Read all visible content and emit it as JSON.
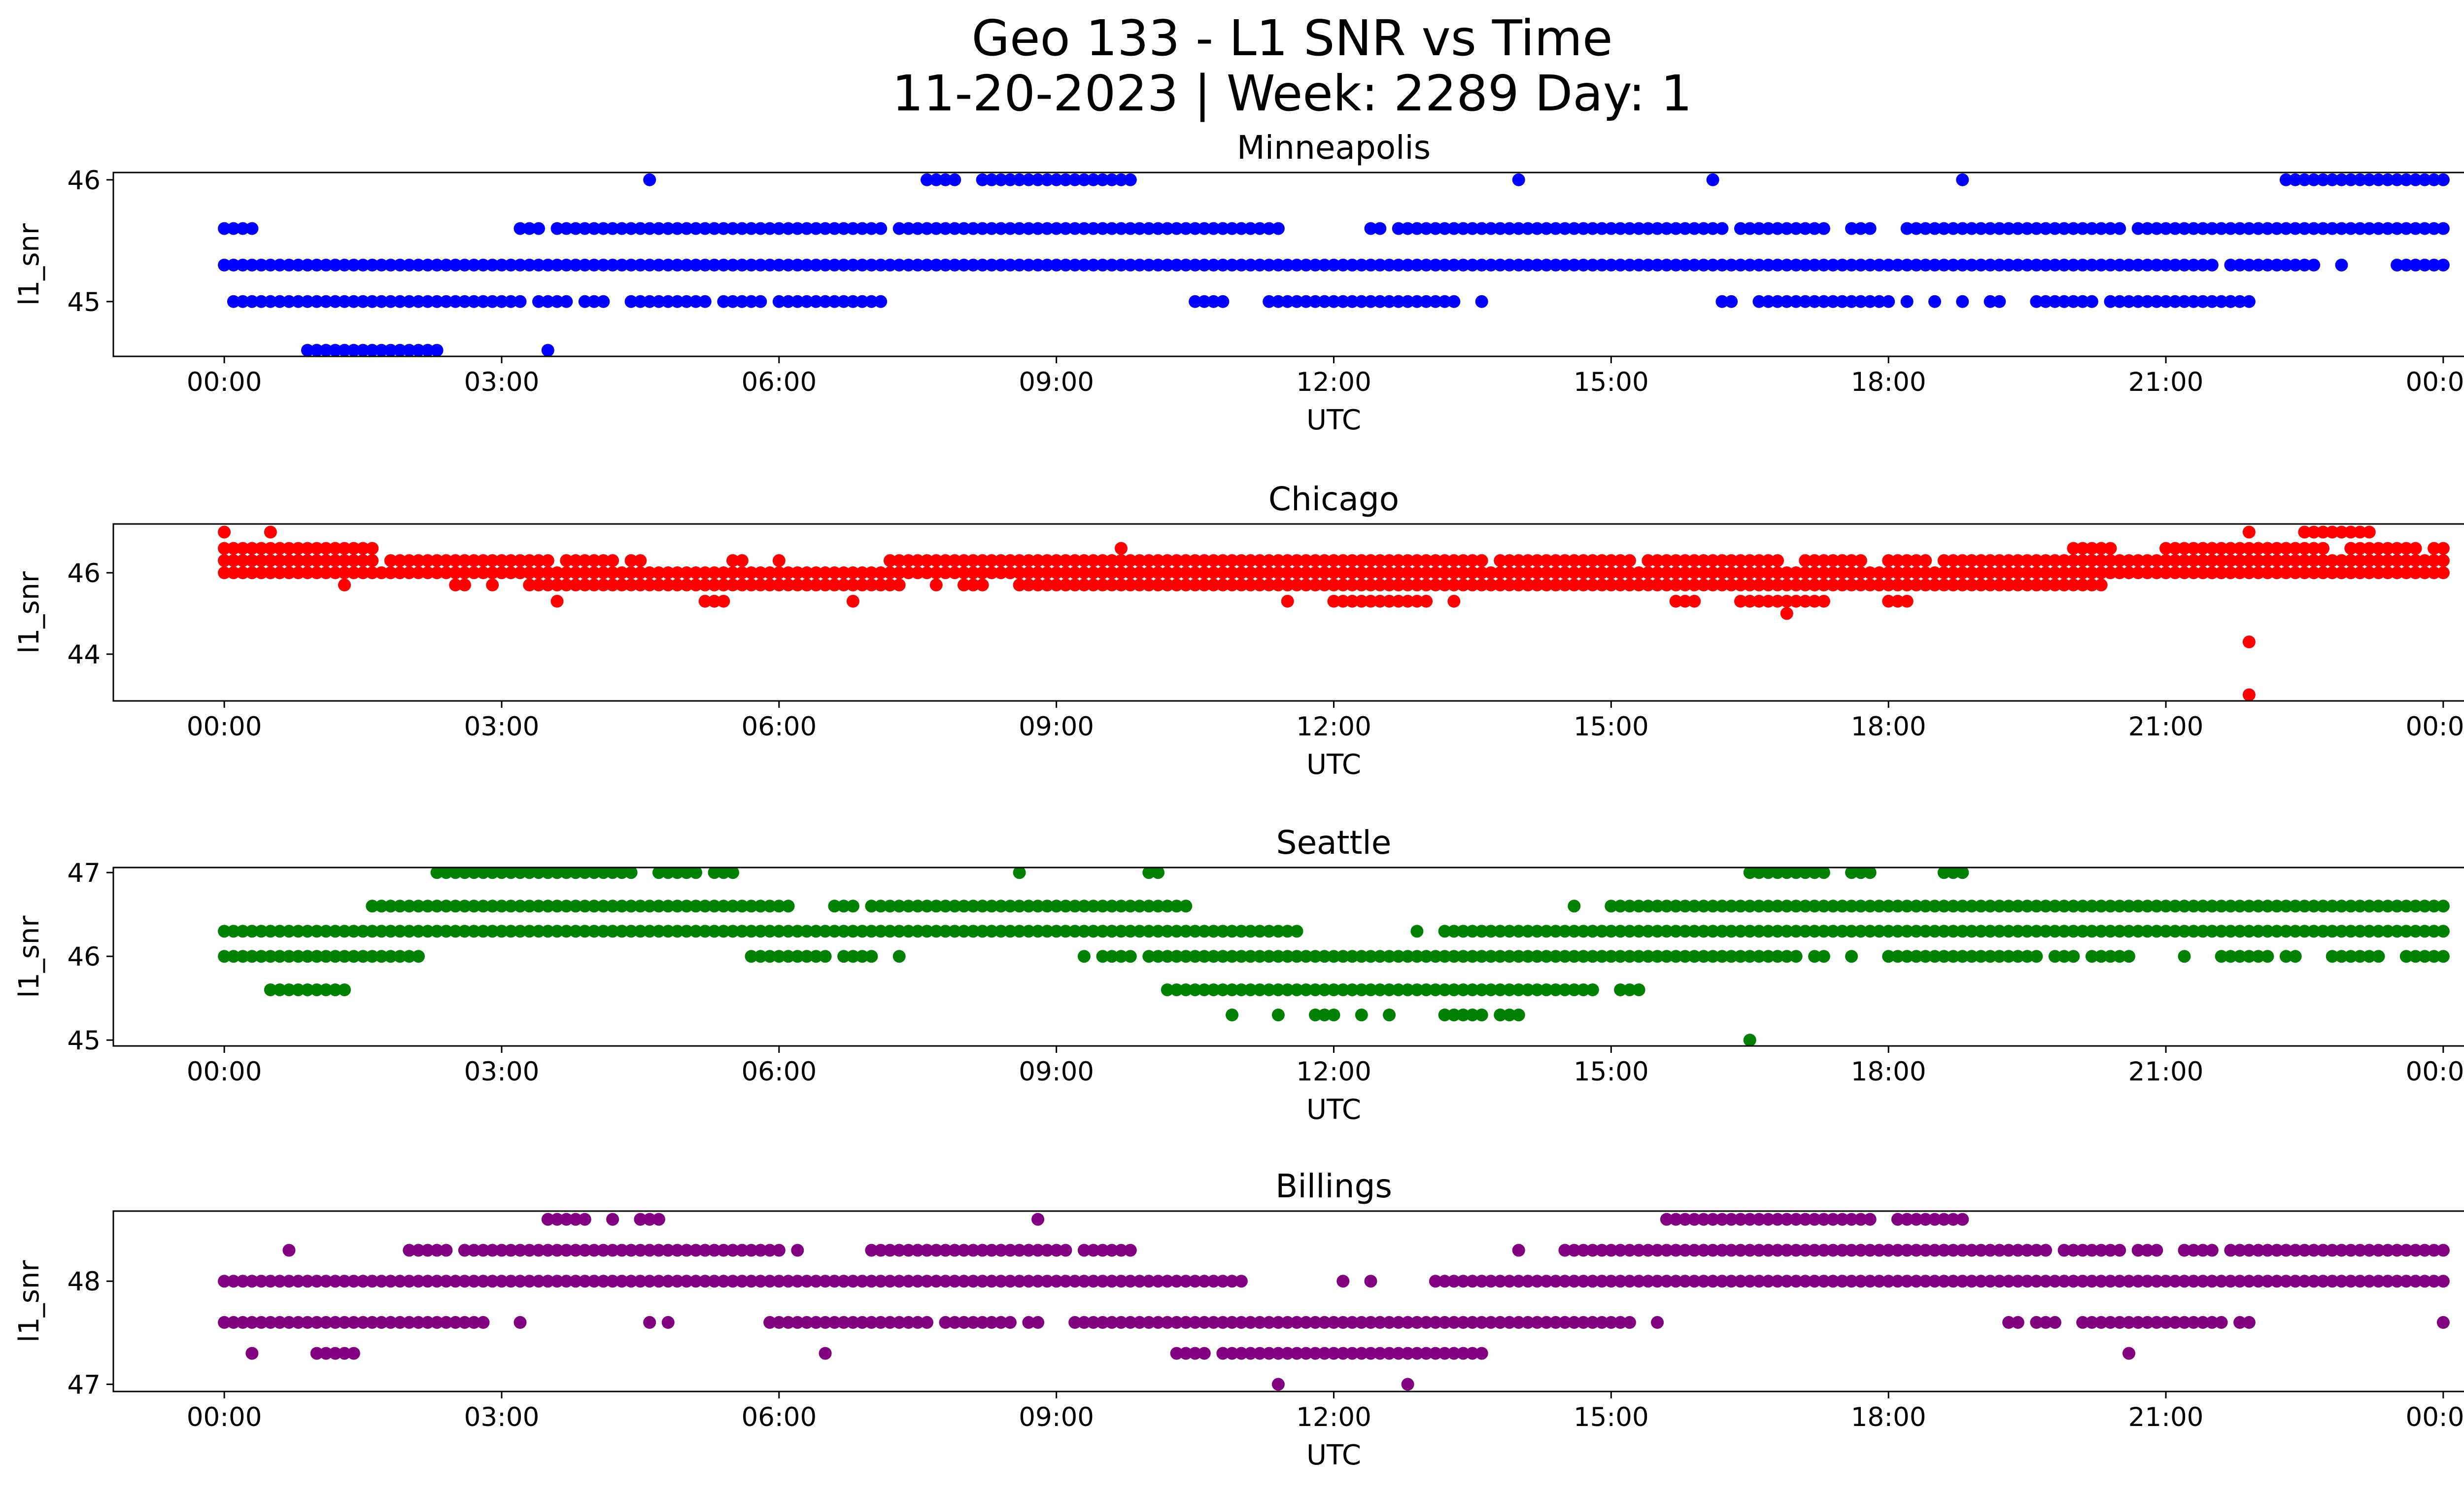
{
  "figure_title_line1": "Geo 133 - L1 SNR vs Time",
  "figure_title_line2": "11-20-2023 | Week: 2289 Day: 1",
  "chart_data": [
    {
      "type": "scatter",
      "title": "Minneapolis",
      "xlabel": "UTC",
      "ylabel": "l1_snr",
      "color": "#0000ff",
      "xticks": [
        "00:00",
        "03:00",
        "06:00",
        "09:00",
        "12:00",
        "15:00",
        "18:00",
        "21:00",
        "00:00"
      ],
      "yticks": [
        45,
        46
      ],
      "xlim_hours": [
        -1.2,
        25.2
      ],
      "ylim": [
        44.55,
        46.06
      ],
      "levels": [
        {
          "y": 46.0,
          "runs": [
            [
              4.6,
              4.6
            ],
            [
              7.6,
              7.9
            ],
            [
              8.2,
              9.8
            ],
            [
              14.0,
              14.0
            ],
            [
              16.1,
              16.1
            ],
            [
              18.8,
              18.8
            ],
            [
              22.3,
              23.9
            ],
            [
              24.0,
              24.0
            ]
          ]
        },
        {
          "y": 45.6,
          "runs": [
            [
              0.0,
              0.3
            ],
            [
              3.2,
              3.4
            ],
            [
              3.6,
              6.2
            ],
            [
              6.3,
              7.1
            ],
            [
              7.3,
              11.4
            ],
            [
              12.4,
              12.5
            ],
            [
              12.7,
              13.0
            ],
            [
              13.1,
              16.2
            ],
            [
              16.4,
              17.3
            ],
            [
              17.6,
              17.8
            ],
            [
              18.2,
              18.3
            ],
            [
              18.4,
              20.5
            ],
            [
              20.7,
              20.9
            ],
            [
              21.0,
              21.2
            ],
            [
              21.3,
              24.0
            ]
          ]
        },
        {
          "y": 45.3,
          "runs": [
            [
              0.0,
              8.1
            ],
            [
              8.2,
              11.4
            ],
            [
              11.5,
              21.5
            ],
            [
              21.7,
              22.6
            ],
            [
              22.9,
              22.9
            ],
            [
              23.5,
              23.7
            ],
            [
              23.8,
              24.0
            ]
          ]
        },
        {
          "y": 45.0,
          "runs": [
            [
              0.1,
              3.2
            ],
            [
              3.4,
              3.7
            ],
            [
              3.9,
              4.1
            ],
            [
              4.4,
              5.2
            ],
            [
              5.4,
              5.8
            ],
            [
              6.0,
              7.1
            ],
            [
              10.5,
              10.8
            ],
            [
              11.3,
              13.3
            ],
            [
              13.6,
              13.6
            ],
            [
              16.2,
              16.3
            ],
            [
              16.6,
              18.0
            ],
            [
              18.2,
              18.2
            ],
            [
              18.5,
              18.5
            ],
            [
              18.8,
              18.8
            ],
            [
              19.1,
              19.2
            ],
            [
              19.6,
              20.2
            ],
            [
              20.4,
              21.7
            ],
            [
              21.7,
              21.9
            ]
          ]
        },
        {
          "y": 44.6,
          "runs": [
            [
              0.9,
              2.3
            ],
            [
              3.5,
              3.5
            ]
          ]
        }
      ]
    },
    {
      "type": "scatter",
      "title": "Chicago",
      "xlabel": "UTC",
      "ylabel": "l1_snr",
      "color": "#ff0000",
      "xticks": [
        "00:00",
        "03:00",
        "06:00",
        "09:00",
        "12:00",
        "15:00",
        "18:00",
        "21:00",
        "00:00"
      ],
      "yticks": [
        44,
        46
      ],
      "xlim_hours": [
        -1.2,
        25.2
      ],
      "ylim": [
        42.85,
        47.2
      ],
      "levels": [
        {
          "y": 47.0,
          "runs": [
            [
              0.0,
              0.0
            ],
            [
              0.5,
              0.5
            ],
            [
              21.9,
              21.9
            ],
            [
              22.5,
              23.2
            ]
          ]
        },
        {
          "y": 46.6,
          "runs": [
            [
              0.0,
              1.6
            ],
            [
              9.7,
              9.7
            ],
            [
              20.0,
              20.4
            ],
            [
              21.0,
              22.7
            ],
            [
              23.0,
              23.5
            ],
            [
              23.6,
              23.7
            ],
            [
              23.9,
              24.0
            ]
          ]
        },
        {
          "y": 46.3,
          "runs": [
            [
              0.0,
              1.6
            ],
            [
              1.8,
              3.5
            ],
            [
              3.7,
              4.2
            ],
            [
              4.4,
              4.5
            ],
            [
              5.5,
              5.6
            ],
            [
              6.0,
              6.0
            ],
            [
              7.2,
              9.8
            ],
            [
              9.9,
              11.5
            ],
            [
              11.6,
              12.8
            ],
            [
              12.9,
              13.6
            ],
            [
              13.8,
              15.2
            ],
            [
              15.4,
              15.9
            ],
            [
              16.0,
              16.8
            ],
            [
              17.1,
              17.7
            ],
            [
              18.0,
              18.4
            ],
            [
              18.6,
              19.0
            ],
            [
              19.1,
              20.2
            ],
            [
              20.3,
              24.0
            ]
          ]
        },
        {
          "y": 46.0,
          "runs": [
            [
              0.0,
              24.0
            ]
          ]
        },
        {
          "y": 45.7,
          "runs": [
            [
              1.3,
              1.3
            ],
            [
              2.5,
              2.6
            ],
            [
              2.9,
              2.9
            ],
            [
              3.3,
              7.3
            ],
            [
              7.7,
              7.7
            ],
            [
              8.0,
              8.2
            ],
            [
              8.6,
              20.3
            ]
          ]
        },
        {
          "y": 45.3,
          "runs": [
            [
              3.6,
              3.6
            ],
            [
              5.2,
              5.4
            ],
            [
              6.8,
              6.8
            ],
            [
              11.5,
              11.5
            ],
            [
              12.0,
              13.0
            ],
            [
              13.3,
              13.3
            ],
            [
              15.7,
              15.9
            ],
            [
              16.4,
              17.3
            ],
            [
              18.0,
              18.2
            ]
          ]
        },
        {
          "y": 45.0,
          "runs": [
            [
              16.9,
              16.9
            ]
          ]
        },
        {
          "y": 44.3,
          "runs": [
            [
              21.9,
              21.9
            ]
          ]
        },
        {
          "y": 43.0,
          "runs": [
            [
              21.9,
              21.9
            ]
          ]
        }
      ]
    },
    {
      "type": "scatter",
      "title": "Seattle",
      "xlabel": "UTC",
      "ylabel": "l1_snr",
      "color": "#008000",
      "xticks": [
        "00:00",
        "03:00",
        "06:00",
        "09:00",
        "12:00",
        "15:00",
        "18:00",
        "21:00",
        "00:00"
      ],
      "yticks": [
        45,
        46,
        47
      ],
      "xlim_hours": [
        -1.2,
        25.2
      ],
      "ylim": [
        44.93,
        47.06
      ],
      "levels": [
        {
          "y": 47.0,
          "runs": [
            [
              2.3,
              4.4
            ],
            [
              4.7,
              5.1
            ],
            [
              5.3,
              5.5
            ],
            [
              8.6,
              8.6
            ],
            [
              10.0,
              10.1
            ],
            [
              16.5,
              17.3
            ],
            [
              17.6,
              17.8
            ],
            [
              18.6,
              18.8
            ]
          ]
        },
        {
          "y": 46.6,
          "runs": [
            [
              1.6,
              6.1
            ],
            [
              6.6,
              6.8
            ],
            [
              7.0,
              10.2
            ],
            [
              10.3,
              10.4
            ],
            [
              14.6,
              14.6
            ],
            [
              15.0,
              15.3
            ],
            [
              15.4,
              24.0
            ]
          ]
        },
        {
          "y": 46.3,
          "runs": [
            [
              0.0,
              11.6
            ],
            [
              12.9,
              12.9
            ],
            [
              13.2,
              24.0
            ]
          ]
        },
        {
          "y": 46.0,
          "runs": [
            [
              0.0,
              2.1
            ],
            [
              5.7,
              6.5
            ],
            [
              6.7,
              7.0
            ],
            [
              7.3,
              7.3
            ],
            [
              9.3,
              9.3
            ],
            [
              9.5,
              9.8
            ],
            [
              10.0,
              16.4
            ],
            [
              16.5,
              17.0
            ],
            [
              17.2,
              17.3
            ],
            [
              17.6,
              17.6
            ],
            [
              18.0,
              19.6
            ],
            [
              19.8,
              20.0
            ],
            [
              20.2,
              20.6
            ],
            [
              21.2,
              21.2
            ],
            [
              21.6,
              22.1
            ],
            [
              22.3,
              22.4
            ],
            [
              22.8,
              23.3
            ],
            [
              23.6,
              24.0
            ]
          ]
        },
        {
          "y": 45.6,
          "runs": [
            [
              0.5,
              1.3
            ],
            [
              10.2,
              14.8
            ],
            [
              15.1,
              15.3
            ]
          ]
        },
        {
          "y": 45.3,
          "runs": [
            [
              10.9,
              10.9
            ],
            [
              11.4,
              11.4
            ],
            [
              11.8,
              12.0
            ],
            [
              12.3,
              12.3
            ],
            [
              12.6,
              12.6
            ],
            [
              13.2,
              13.6
            ],
            [
              13.8,
              14.0
            ]
          ]
        },
        {
          "y": 45.0,
          "runs": [
            [
              16.5,
              16.5
            ]
          ]
        }
      ]
    },
    {
      "type": "scatter",
      "title": "Billings",
      "xlabel": "UTC",
      "ylabel": "l1_snr",
      "color": "#800080",
      "xticks": [
        "00:00",
        "03:00",
        "06:00",
        "09:00",
        "12:00",
        "15:00",
        "18:00",
        "21:00",
        "00:00"
      ],
      "yticks": [
        47,
        48
      ],
      "xlim_hours": [
        -1.2,
        25.2
      ],
      "ylim": [
        46.93,
        48.68
      ],
      "levels": [
        {
          "y": 48.6,
          "runs": [
            [
              3.5,
              3.9
            ],
            [
              4.2,
              4.2
            ],
            [
              4.5,
              4.7
            ],
            [
              8.8,
              8.8
            ],
            [
              15.6,
              17.8
            ],
            [
              18.1,
              18.8
            ]
          ]
        },
        {
          "y": 48.3,
          "runs": [
            [
              0.7,
              0.7
            ],
            [
              2.0,
              2.4
            ],
            [
              2.6,
              6.0
            ],
            [
              6.2,
              6.2
            ],
            [
              7.0,
              9.1
            ],
            [
              9.3,
              9.8
            ],
            [
              14.0,
              14.0
            ],
            [
              14.5,
              19.7
            ],
            [
              19.9,
              20.5
            ],
            [
              20.7,
              20.9
            ],
            [
              21.2,
              21.5
            ],
            [
              21.7,
              24.0
            ]
          ]
        },
        {
          "y": 48.0,
          "runs": [
            [
              0.0,
              11.0
            ],
            [
              12.1,
              12.1
            ],
            [
              12.4,
              12.4
            ],
            [
              13.1,
              24.0
            ]
          ]
        },
        {
          "y": 47.6,
          "runs": [
            [
              0.0,
              2.8
            ],
            [
              3.2,
              3.2
            ],
            [
              4.6,
              4.6
            ],
            [
              4.8,
              4.8
            ],
            [
              5.9,
              7.6
            ],
            [
              7.8,
              8.2
            ],
            [
              8.3,
              8.5
            ],
            [
              8.7,
              8.8
            ],
            [
              9.2,
              15.0
            ],
            [
              15.1,
              15.2
            ],
            [
              15.5,
              15.5
            ],
            [
              19.3,
              19.4
            ],
            [
              19.6,
              19.8
            ],
            [
              20.1,
              21.3
            ],
            [
              21.4,
              21.6
            ],
            [
              21.8,
              21.9
            ],
            [
              24.0,
              24.0
            ]
          ]
        },
        {
          "y": 47.3,
          "runs": [
            [
              0.3,
              0.3
            ],
            [
              1.0,
              1.4
            ],
            [
              6.5,
              6.5
            ],
            [
              10.3,
              10.6
            ],
            [
              10.8,
              13.6
            ],
            [
              20.6,
              20.6
            ]
          ]
        },
        {
          "y": 47.0,
          "runs": [
            [
              11.4,
              11.4
            ],
            [
              12.8,
              12.8
            ]
          ]
        }
      ]
    }
  ]
}
